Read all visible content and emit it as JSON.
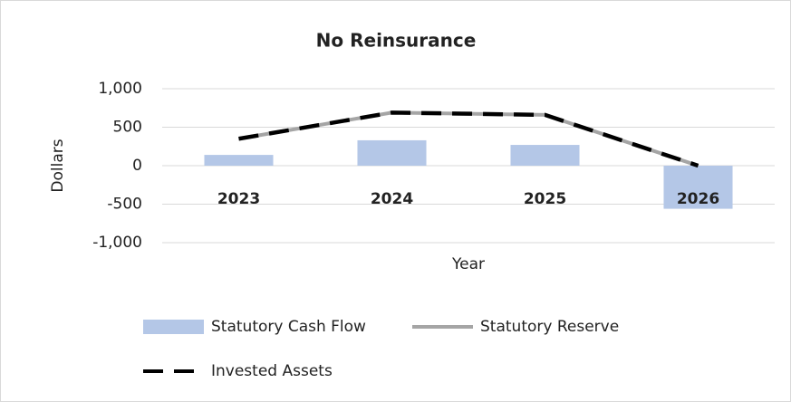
{
  "chart_data": {
    "type": "combo",
    "title": "No Reinsurance",
    "y_label": "Dollars",
    "x_label": "Year",
    "categories": [
      "2023",
      "2024",
      "2025",
      "2026"
    ],
    "series": [
      {
        "name": "Statutory Cash Flow",
        "type": "bar",
        "color": "#b4c7e7",
        "values": [
          140,
          330,
          270,
          -560
        ]
      },
      {
        "name": "Statutory Reserve",
        "type": "line",
        "color": "#a5a5a5",
        "values": [
          350,
          690,
          660,
          0
        ]
      },
      {
        "name": "Invested Assets",
        "type": "dashed-line",
        "color": "#000000",
        "values": [
          350,
          690,
          660,
          0
        ]
      }
    ],
    "ylim": [
      -1000,
      1000
    ],
    "yticks": [
      {
        "value": 1000,
        "label": "1,000"
      },
      500,
      0,
      -500,
      {
        "value": -1000,
        "label": "-1,000"
      }
    ],
    "grid": true
  }
}
